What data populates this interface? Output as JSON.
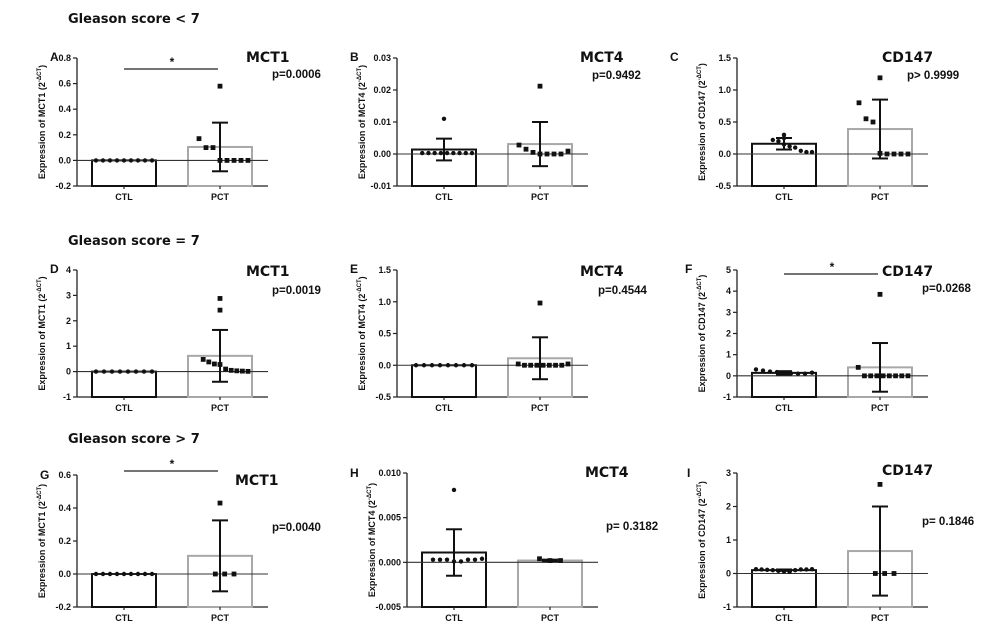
{
  "group_titles": [
    "Gleason score < 7",
    "Gleason score = 7",
    "Gleason score > 7"
  ],
  "chart_data": [
    {
      "type": "bar",
      "panel": "A",
      "group": "Gleason score < 7",
      "title": "MCT1",
      "ylabel": "Expression of MCT1 (2^-ΔCT)",
      "ylabel_main": "Expression of MCT1 (2",
      "ylabel_sup": "-ΔCT",
      "ylabel_end": ")",
      "categories": [
        "CTL",
        "PCT"
      ],
      "ylim": [
        -0.2,
        0.8
      ],
      "yticks": [
        -0.2,
        0.0,
        0.2,
        0.4,
        0.6,
        0.8
      ],
      "tick_labels": [
        "-0.2",
        "0.0",
        "0.2",
        "0.4",
        "0.6",
        "0.8"
      ],
      "means": [
        0.0,
        0.105
      ],
      "sd": [
        0.0,
        0.19
      ],
      "points": [
        [
          0,
          0,
          0,
          0,
          0,
          0,
          0,
          0,
          0
        ],
        [
          0.58,
          0.17,
          0.1,
          0.1,
          0,
          0,
          0,
          0,
          0
        ]
      ],
      "pvalue": "p=0.0006",
      "significance": "*"
    },
    {
      "type": "bar",
      "panel": "B",
      "group": "Gleason score < 7",
      "title": "MCT4",
      "ylabel": "Expression of MCT4 (2^-ΔCT)",
      "ylabel_main": "Expression of MCT4 (2",
      "ylabel_sup": "-ΔCT",
      "ylabel_end": ")",
      "categories": [
        "CTL",
        "PCT"
      ],
      "ylim": [
        -0.01,
        0.03
      ],
      "yticks": [
        -0.01,
        0.0,
        0.01,
        0.02,
        0.03
      ],
      "tick_labels": [
        "-0.01",
        "0.00",
        "0.01",
        "0.02",
        "0.03"
      ],
      "means": [
        0.0014,
        0.0031
      ],
      "sd": [
        0.0034,
        0.0069
      ],
      "points": [
        [
          0.011,
          0.0003,
          0.0003,
          0.0003,
          0.0003,
          0.0003,
          0.0003,
          0.0003,
          0.0003,
          0.0003
        ],
        [
          0.0212,
          0.0028,
          0.0015,
          0.0005,
          0.0,
          0.0,
          0.0,
          0.0,
          0.0009
        ]
      ],
      "pvalue": "p=0.9492",
      "significance": ""
    },
    {
      "type": "bar",
      "panel": "C",
      "group": "Gleason score < 7",
      "title": "CD147",
      "ylabel": "Expression of CD147 (2^-ΔCT)",
      "ylabel_main": "Expression of CD147 (2",
      "ylabel_sup": "-ΔCT",
      "ylabel_end": ")",
      "categories": [
        "CTL",
        "PCT"
      ],
      "ylim": [
        -0.5,
        1.5
      ],
      "yticks": [
        -0.5,
        0.0,
        0.5,
        1.0,
        1.5
      ],
      "tick_labels": [
        "-0.5",
        "0.0",
        "0.5",
        "1.0",
        "1.5"
      ],
      "means": [
        0.16,
        0.39
      ],
      "sd": [
        0.09,
        0.46
      ],
      "points": [
        [
          0.3,
          0.25,
          0.25,
          0.22,
          0.2,
          0.15,
          0.12,
          0.1,
          0.05,
          0.03,
          0.03
        ],
        [
          1.19,
          0.8,
          0.55,
          0.5,
          0.01,
          0.0,
          0.0,
          0.0,
          0.0
        ]
      ],
      "pvalue": "p> 0.9999",
      "significance": ""
    },
    {
      "type": "bar",
      "panel": "D",
      "group": "Gleason score = 7",
      "title": "MCT1",
      "ylabel": "Expression of MCT1 (2^-ΔCT)",
      "ylabel_main": "Expression of MCT1 (2",
      "ylabel_sup": "-ΔCT",
      "ylabel_end": ")",
      "categories": [
        "CTL",
        "PCT"
      ],
      "ylim": [
        -1,
        4
      ],
      "yticks": [
        -1,
        0,
        1,
        2,
        3,
        4
      ],
      "tick_labels": [
        "-1",
        "0",
        "1",
        "2",
        "3",
        "4"
      ],
      "means": [
        0.0,
        0.62
      ],
      "sd": [
        0.0,
        1.02
      ],
      "points": [
        [
          0,
          0,
          0,
          0,
          0,
          0,
          0,
          0
        ],
        [
          2.88,
          2.42,
          0.48,
          0.38,
          0.3,
          0.28,
          0.1,
          0.05,
          0.03,
          0.02,
          0.01
        ]
      ],
      "pvalue": "p=0.0019",
      "significance": ""
    },
    {
      "type": "bar",
      "panel": "E",
      "group": "Gleason score = 7",
      "title": "MCT4",
      "ylabel": "Expression of MCT4 (2^-ΔCT)",
      "ylabel_main": "Expression of MCT4 (2",
      "ylabel_sup": "-ΔCT",
      "ylabel_end": ")",
      "categories": [
        "CTL",
        "PCT"
      ],
      "ylim": [
        -0.5,
        1.5
      ],
      "yticks": [
        -0.5,
        0.0,
        0.5,
        1.0,
        1.5
      ],
      "tick_labels": [
        "-0.5",
        "0.0",
        "0.5",
        "1.0",
        "1.5"
      ],
      "means": [
        0.0,
        0.11
      ],
      "sd": [
        0.0,
        0.33
      ],
      "points": [
        [
          0,
          0,
          0,
          0,
          0,
          0,
          0,
          0
        ],
        [
          0.98,
          0.02,
          0.0,
          0.0,
          0.0,
          0.0,
          0.0,
          0.0,
          0.0,
          0.02
        ]
      ],
      "pvalue": "p=0.4544",
      "significance": ""
    },
    {
      "type": "bar",
      "panel": "F",
      "group": "Gleason score = 7",
      "title": "CD147",
      "ylabel": "Expression of CD147 (2^-ΔCT)",
      "ylabel_main": "Expression of CD147 (2",
      "ylabel_sup": "-ΔCT",
      "ylabel_end": ")",
      "categories": [
        "CTL",
        "PCT"
      ],
      "ylim": [
        -1,
        5
      ],
      "yticks": [
        -1,
        0,
        1,
        2,
        3,
        4,
        5
      ],
      "tick_labels": [
        "-1",
        "0",
        "1",
        "2",
        "3",
        "4",
        "5"
      ],
      "means": [
        0.14,
        0.4
      ],
      "sd": [
        0.08,
        1.15
      ],
      "points": [
        [
          0.3,
          0.25,
          0.2,
          0.18,
          0.15,
          0.12,
          0.1,
          0.1,
          0.15
        ],
        [
          3.85,
          0.4,
          0.0,
          0.0,
          0.0,
          0.0,
          0.0,
          0.0,
          0.0,
          0.0
        ]
      ],
      "pvalue": "p=0.0268",
      "significance": "*"
    },
    {
      "type": "bar",
      "panel": "G",
      "group": "Gleason score > 7",
      "title": "MCT1",
      "ylabel": "Expression of MCT1 (2^-ΔCT)",
      "ylabel_main": "Expression of MCT1 (2",
      "ylabel_sup": "-ΔCT",
      "ylabel_end": ")",
      "categories": [
        "CTL",
        "PCT"
      ],
      "ylim": [
        -0.2,
        0.6
      ],
      "yticks": [
        -0.2,
        0.0,
        0.2,
        0.4,
        0.6
      ],
      "tick_labels": [
        "-0.2",
        "0.0",
        "0.2",
        "0.4",
        "0.6"
      ],
      "means": [
        0.0,
        0.11
      ],
      "sd": [
        0.0,
        0.215
      ],
      "points": [
        [
          0,
          0,
          0,
          0,
          0,
          0,
          0,
          0,
          0
        ],
        [
          0.43,
          0.0,
          0.0,
          0.0
        ]
      ],
      "pvalue": "p=0.0040",
      "significance": "*"
    },
    {
      "type": "bar",
      "panel": "H",
      "group": "Gleason score > 7",
      "title": "MCT4",
      "ylabel": "Expression of MCT4 (2^-ΔCT)",
      "ylabel_main": "Expression of MCT4 (2",
      "ylabel_sup": "-ΔCT",
      "ylabel_end": ")",
      "categories": [
        "CTL",
        "PCT"
      ],
      "ylim": [
        -0.005,
        0.01
      ],
      "yticks": [
        -0.005,
        0.0,
        0.005,
        0.01
      ],
      "tick_labels": [
        "-0.005",
        "0.000",
        "0.005",
        "0.010"
      ],
      "means": [
        0.0011,
        0.0002
      ],
      "sd": [
        0.0026,
        0.0001
      ],
      "points": [
        [
          0.0081,
          0.0003,
          0.0003,
          0.0003,
          0.0001,
          0.0001,
          0.0003,
          0.0003,
          0.0004
        ],
        [
          0.0004,
          0.0002,
          0.0002
        ]
      ],
      "pvalue": "p= 0.3182",
      "significance": ""
    },
    {
      "type": "bar",
      "panel": "I",
      "group": "Gleason score > 7",
      "title": "CD147",
      "ylabel": "Expression of CD147 (2^-ΔCT)",
      "ylabel_main": "Expression of CD147 (2",
      "ylabel_sup": "-ΔCT",
      "ylabel_end": ")",
      "categories": [
        "CTL",
        "PCT"
      ],
      "ylim": [
        -1,
        3
      ],
      "yticks": [
        -1,
        0,
        1,
        2,
        3
      ],
      "tick_labels": [
        "-1",
        "0",
        "1",
        "2",
        "3"
      ],
      "means": [
        0.1,
        0.67
      ],
      "sd": [
        0.02,
        1.33
      ],
      "points": [
        [
          0.13,
          0.12,
          0.11,
          0.1,
          0.08,
          0.06,
          0.05,
          0.1,
          0.12,
          0.12,
          0.13
        ],
        [
          2.66,
          0.0,
          0.0,
          0.0
        ]
      ],
      "pvalue": "p= 0.1846",
      "significance": ""
    }
  ]
}
